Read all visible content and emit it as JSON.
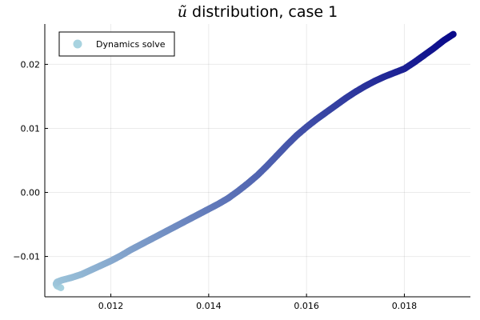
{
  "chart_data": {
    "type": "scatter",
    "title": {
      "math": "ũ",
      "text": " distribution, case 1"
    },
    "xlabel": "",
    "ylabel": "",
    "xlim": [
      0.01065,
      0.01935
    ],
    "ylim": [
      -0.0163,
      0.0263
    ],
    "xticks": [
      {
        "value": 0.012,
        "label": "0.012"
      },
      {
        "value": 0.014,
        "label": "0.014"
      },
      {
        "value": 0.016,
        "label": "0.016"
      },
      {
        "value": 0.018,
        "label": "0.018"
      }
    ],
    "yticks": [
      {
        "value": -0.01,
        "label": "−0.01"
      },
      {
        "value": 0.0,
        "label": "0.00"
      },
      {
        "value": 0.01,
        "label": "0.01"
      },
      {
        "value": 0.02,
        "label": "0.02"
      }
    ],
    "grid": true,
    "legend": {
      "position": "top-left",
      "entries": [
        {
          "label": "Dynamics solve",
          "color": "#a8d3e0"
        }
      ]
    },
    "series": [
      {
        "name": "Dynamics solve",
        "color_start": "#a8d3e0",
        "color_end": "#0a0a8a",
        "points": [
          [
            0.01098,
            -0.0149
          ],
          [
            0.0109,
            -0.0146
          ],
          [
            0.01088,
            -0.0143
          ],
          [
            0.0109,
            -0.014
          ],
          [
            0.011,
            -0.0137
          ],
          [
            0.0112,
            -0.0133
          ],
          [
            0.0114,
            -0.0128
          ],
          [
            0.0116,
            -0.0121
          ],
          [
            0.0118,
            -0.0114
          ],
          [
            0.012,
            -0.0107
          ],
          [
            0.0122,
            -0.0099
          ],
          [
            0.0124,
            -0.009
          ],
          [
            0.0126,
            -0.0082
          ],
          [
            0.0128,
            -0.0074
          ],
          [
            0.013,
            -0.0066
          ],
          [
            0.0132,
            -0.0058
          ],
          [
            0.0134,
            -0.005
          ],
          [
            0.0136,
            -0.0042
          ],
          [
            0.0138,
            -0.0034
          ],
          [
            0.014,
            -0.0026
          ],
          [
            0.0142,
            -0.0018
          ],
          [
            0.0144,
            -0.0009
          ],
          [
            0.0146,
            0.0002
          ],
          [
            0.0148,
            0.0014
          ],
          [
            0.015,
            0.0027
          ],
          [
            0.0152,
            0.0042
          ],
          [
            0.0154,
            0.0058
          ],
          [
            0.0156,
            0.0074
          ],
          [
            0.0158,
            0.0089
          ],
          [
            0.016,
            0.0102
          ],
          [
            0.0162,
            0.0114
          ],
          [
            0.0164,
            0.0125
          ],
          [
            0.0166,
            0.0136
          ],
          [
            0.0168,
            0.0147
          ],
          [
            0.017,
            0.0157
          ],
          [
            0.0172,
            0.0166
          ],
          [
            0.0174,
            0.0174
          ],
          [
            0.0176,
            0.0181
          ],
          [
            0.0178,
            0.0187
          ],
          [
            0.018,
            0.0193
          ],
          [
            0.0182,
            0.0203
          ],
          [
            0.0184,
            0.0214
          ],
          [
            0.0186,
            0.0225
          ],
          [
            0.0188,
            0.0237
          ],
          [
            0.019,
            0.0247
          ]
        ]
      }
    ]
  }
}
